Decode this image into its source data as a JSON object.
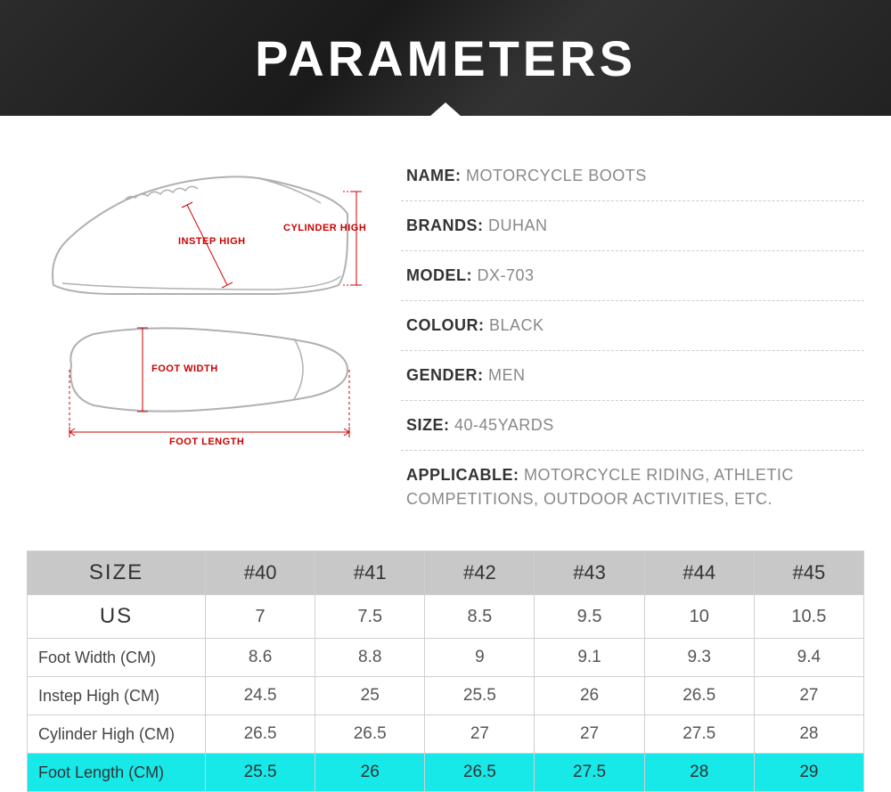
{
  "header": {
    "title": "PARAMETERS",
    "background_gradient": [
      "#2c2c2c",
      "#1a1a1a",
      "#333333",
      "#222222"
    ],
    "title_color": "#ffffff",
    "title_fontsize": 56
  },
  "diagram": {
    "labels": {
      "instep_high": "INSTEP HIGH",
      "cylinder_high": "CYLINDER HIGH",
      "foot_width": "FOOT WIDTH",
      "foot_length": "FOOT LENGTH"
    },
    "outline_color": "#b0b0b0",
    "measure_color": "#cc0000",
    "label_color": "#cc0000",
    "label_fontsize": 11
  },
  "specs": [
    {
      "label": "NAME:",
      "value": "MOTORCYCLE BOOTS"
    },
    {
      "label": "BRANDS:",
      "value": "DUHAN"
    },
    {
      "label": "MODEL:",
      "value": "DX-703"
    },
    {
      "label": "COLOUR:",
      "value": "BLACK"
    },
    {
      "label": "GENDER:",
      "value": "MEN"
    },
    {
      "label": "SIZE:",
      "value": "40-45YARDS"
    },
    {
      "label": "APPLICABLE:",
      "value": "MOTORCYCLE RIDING, ATHLETIC COMPETITIONS, OUTDOOR ACTIVITIES, ETC."
    }
  ],
  "spec_style": {
    "label_color": "#333333",
    "value_color": "#888888",
    "fontsize": 18,
    "divider_color": "#cccccc"
  },
  "table": {
    "type": "table",
    "columns": [
      "SIZE",
      "#40",
      "#41",
      "#42",
      "#43",
      "#44",
      "#45"
    ],
    "rows": [
      {
        "label": "US",
        "cells": [
          "7",
          "7.5",
          "8.5",
          "9.5",
          "10",
          "10.5"
        ],
        "class": "us-row"
      },
      {
        "label": "Foot Width (CM)",
        "cells": [
          "8.6",
          "8.8",
          "9",
          "9.1",
          "9.3",
          "9.4"
        ],
        "class": ""
      },
      {
        "label": "Instep High (CM)",
        "cells": [
          "24.5",
          "25",
          "25.5",
          "26",
          "26.5",
          "27"
        ],
        "class": ""
      },
      {
        "label": "Cylinder High (CM)",
        "cells": [
          "26.5",
          "26.5",
          "27",
          "27",
          "27.5",
          "28"
        ],
        "class": ""
      },
      {
        "label": "Foot Length (CM)",
        "cells": [
          "25.5",
          "26",
          "26.5",
          "27.5",
          "28",
          "29"
        ],
        "class": "highlight"
      }
    ],
    "header_bg": "#c8c8c8",
    "highlight_bg": "#17e8e8",
    "border_color": "#d0d0d0",
    "text_color": "#555555",
    "first_col_width": 200
  }
}
